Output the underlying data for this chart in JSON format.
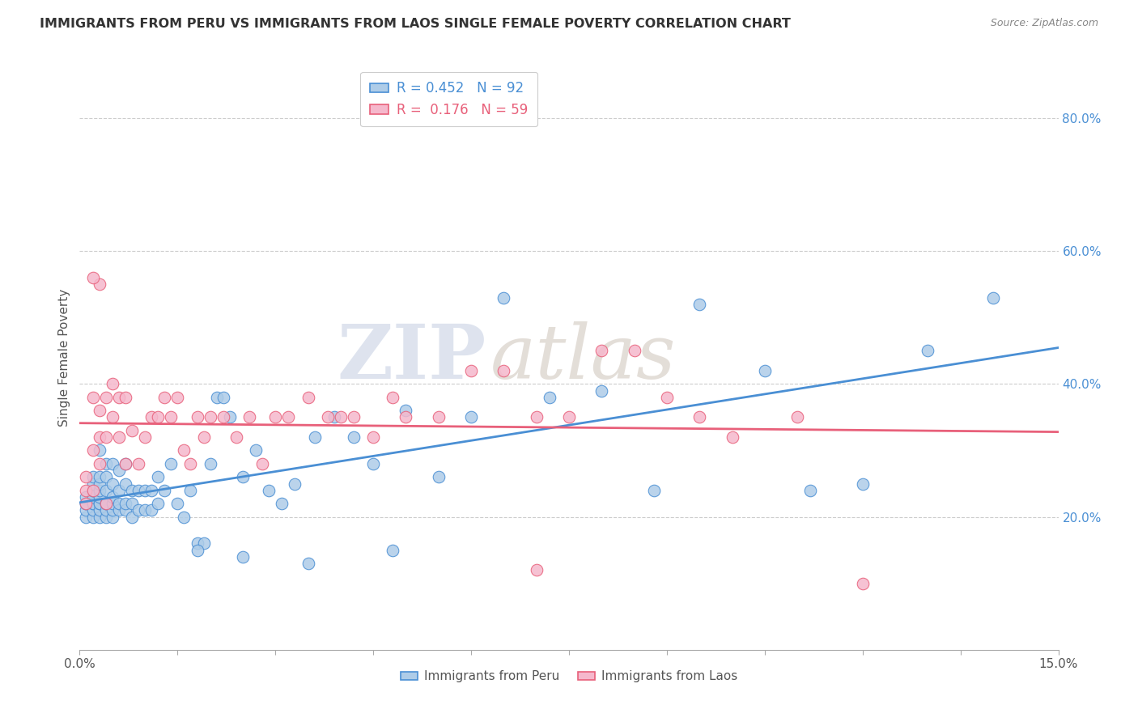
{
  "title": "IMMIGRANTS FROM PERU VS IMMIGRANTS FROM LAOS SINGLE FEMALE POVERTY CORRELATION CHART",
  "source": "Source: ZipAtlas.com",
  "ylabel": "Single Female Poverty",
  "yticks": [
    0.2,
    0.4,
    0.6,
    0.8
  ],
  "ytick_labels": [
    "20.0%",
    "40.0%",
    "60.0%",
    "80.0%"
  ],
  "xmin": 0.0,
  "xmax": 0.15,
  "ymin": 0.0,
  "ymax": 0.88,
  "peru_color": "#aecce8",
  "laos_color": "#f5b8cc",
  "peru_line_color": "#4a8fd4",
  "laos_line_color": "#e8607a",
  "peru_R": 0.452,
  "peru_N": 92,
  "laos_R": 0.176,
  "laos_N": 59,
  "bottom_legend_peru": "Immigrants from Peru",
  "bottom_legend_laos": "Immigrants from Laos",
  "watermark_zip": "ZIP",
  "watermark_atlas": "atlas",
  "peru_x": [
    0.001,
    0.001,
    0.001,
    0.001,
    0.001,
    0.002,
    0.002,
    0.002,
    0.002,
    0.002,
    0.002,
    0.002,
    0.002,
    0.002,
    0.003,
    0.003,
    0.003,
    0.003,
    0.003,
    0.003,
    0.003,
    0.003,
    0.003,
    0.004,
    0.004,
    0.004,
    0.004,
    0.004,
    0.004,
    0.004,
    0.005,
    0.005,
    0.005,
    0.005,
    0.005,
    0.005,
    0.006,
    0.006,
    0.006,
    0.006,
    0.007,
    0.007,
    0.007,
    0.007,
    0.008,
    0.008,
    0.008,
    0.009,
    0.009,
    0.01,
    0.01,
    0.011,
    0.011,
    0.012,
    0.012,
    0.013,
    0.014,
    0.015,
    0.016,
    0.017,
    0.018,
    0.019,
    0.02,
    0.021,
    0.022,
    0.023,
    0.025,
    0.027,
    0.029,
    0.031,
    0.033,
    0.036,
    0.039,
    0.042,
    0.045,
    0.05,
    0.055,
    0.06,
    0.065,
    0.072,
    0.08,
    0.088,
    0.095,
    0.105,
    0.112,
    0.12,
    0.13,
    0.14,
    0.048,
    0.035,
    0.025,
    0.018
  ],
  "peru_y": [
    0.2,
    0.21,
    0.22,
    0.22,
    0.23,
    0.2,
    0.21,
    0.22,
    0.22,
    0.23,
    0.24,
    0.24,
    0.25,
    0.26,
    0.2,
    0.21,
    0.22,
    0.22,
    0.23,
    0.24,
    0.25,
    0.26,
    0.3,
    0.2,
    0.21,
    0.22,
    0.22,
    0.24,
    0.26,
    0.28,
    0.2,
    0.21,
    0.22,
    0.23,
    0.25,
    0.28,
    0.21,
    0.22,
    0.24,
    0.27,
    0.21,
    0.22,
    0.25,
    0.28,
    0.2,
    0.22,
    0.24,
    0.21,
    0.24,
    0.21,
    0.24,
    0.21,
    0.24,
    0.22,
    0.26,
    0.24,
    0.28,
    0.22,
    0.2,
    0.24,
    0.16,
    0.16,
    0.28,
    0.38,
    0.38,
    0.35,
    0.26,
    0.3,
    0.24,
    0.22,
    0.25,
    0.32,
    0.35,
    0.32,
    0.28,
    0.36,
    0.26,
    0.35,
    0.53,
    0.38,
    0.39,
    0.24,
    0.52,
    0.42,
    0.24,
    0.25,
    0.45,
    0.53,
    0.15,
    0.13,
    0.14,
    0.15
  ],
  "laos_x": [
    0.001,
    0.001,
    0.001,
    0.002,
    0.002,
    0.002,
    0.003,
    0.003,
    0.003,
    0.004,
    0.004,
    0.005,
    0.005,
    0.006,
    0.006,
    0.007,
    0.007,
    0.008,
    0.009,
    0.01,
    0.011,
    0.012,
    0.013,
    0.014,
    0.015,
    0.016,
    0.017,
    0.018,
    0.019,
    0.02,
    0.022,
    0.024,
    0.026,
    0.028,
    0.03,
    0.032,
    0.035,
    0.038,
    0.04,
    0.042,
    0.045,
    0.048,
    0.05,
    0.055,
    0.06,
    0.065,
    0.07,
    0.075,
    0.08,
    0.085,
    0.09,
    0.095,
    0.1,
    0.11,
    0.12,
    0.003,
    0.004,
    0.002,
    0.07
  ],
  "laos_y": [
    0.22,
    0.24,
    0.26,
    0.24,
    0.38,
    0.3,
    0.36,
    0.28,
    0.32,
    0.32,
    0.38,
    0.4,
    0.35,
    0.32,
    0.38,
    0.38,
    0.28,
    0.33,
    0.28,
    0.32,
    0.35,
    0.35,
    0.38,
    0.35,
    0.38,
    0.3,
    0.28,
    0.35,
    0.32,
    0.35,
    0.35,
    0.32,
    0.35,
    0.28,
    0.35,
    0.35,
    0.38,
    0.35,
    0.35,
    0.35,
    0.32,
    0.38,
    0.35,
    0.35,
    0.42,
    0.42,
    0.35,
    0.35,
    0.45,
    0.45,
    0.38,
    0.35,
    0.32,
    0.35,
    0.1,
    0.55,
    0.22,
    0.56,
    0.12
  ]
}
